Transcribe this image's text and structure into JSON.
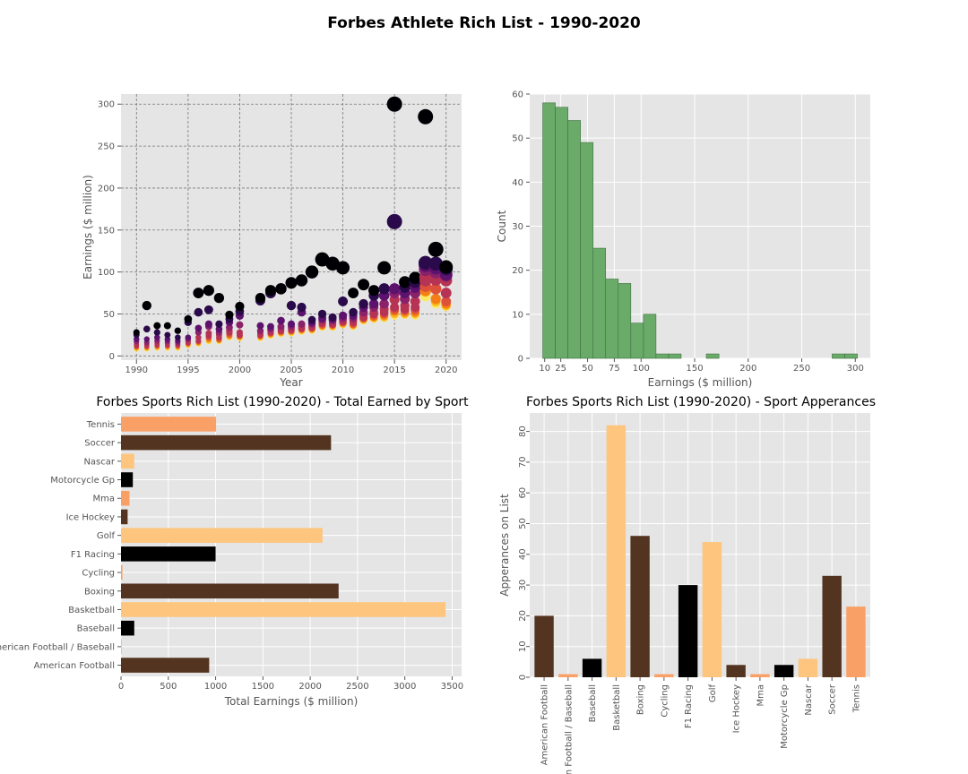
{
  "figure": {
    "title": "Forbes Athlete Rich List - 1990-2020"
  },
  "chart_data": [
    {
      "type": "scatter",
      "title": "",
      "xlabel": "Year",
      "ylabel": "Earnings ($ million)",
      "xlim": [
        1988.5,
        2021.5
      ],
      "ylim": [
        -5,
        312
      ],
      "xticks": [
        1990,
        1995,
        2000,
        2005,
        2010,
        2015,
        2020
      ],
      "yticks": [
        0,
        50,
        100,
        150,
        200,
        250,
        300
      ],
      "grid": "dashed",
      "colormap": [
        "#000004",
        "#2a0a4a",
        "#5d126e",
        "#8a226a",
        "#b73354",
        "#dd513a",
        "#f57d15",
        "#fbb61a",
        "#fbe968"
      ],
      "points_by_year": [
        {
          "year": 1990,
          "values": [
            28,
            25,
            20,
            17,
            14,
            12,
            11,
            10,
            9,
            8
          ]
        },
        {
          "year": 1991,
          "values": [
            60,
            32,
            20,
            16,
            14,
            12,
            11,
            10,
            9,
            8
          ]
        },
        {
          "year": 1992,
          "values": [
            36,
            28,
            22,
            18,
            15,
            13,
            12,
            11,
            10,
            9
          ]
        },
        {
          "year": 1993,
          "values": [
            36,
            25,
            20,
            17,
            15,
            13,
            12,
            11,
            10,
            9
          ]
        },
        {
          "year": 1994,
          "values": [
            30,
            22,
            18,
            16,
            14,
            13,
            12,
            11,
            10,
            9
          ]
        },
        {
          "year": 1995,
          "values": [
            44,
            40,
            22,
            20,
            18,
            16,
            15,
            14,
            13,
            12
          ]
        },
        {
          "year": 1996,
          "values": [
            75,
            52,
            33,
            28,
            22,
            18,
            17,
            16,
            15,
            14
          ]
        },
        {
          "year": 1997,
          "values": [
            78,
            55,
            38,
            35,
            27,
            24,
            22,
            20,
            18,
            17
          ]
        },
        {
          "year": 1998,
          "values": [
            69,
            38,
            32,
            28,
            25,
            22,
            20,
            19,
            18,
            17
          ]
        },
        {
          "year": 1999,
          "values": [
            49,
            44,
            40,
            34,
            30,
            28,
            26,
            24,
            23,
            22
          ]
        },
        {
          "year": 2000,
          "values": [
            59,
            53,
            48,
            37,
            28,
            25,
            24,
            23,
            22,
            21
          ]
        },
        {
          "year": 2002,
          "values": [
            69,
            66,
            36,
            30,
            27,
            25,
            24,
            23,
            22,
            21
          ]
        },
        {
          "year": 2003,
          "values": [
            78,
            75,
            35,
            32,
            30,
            28,
            27,
            26,
            25,
            24
          ]
        },
        {
          "year": 2004,
          "values": [
            80,
            80,
            42,
            35,
            32,
            30,
            29,
            28,
            27,
            26
          ]
        },
        {
          "year": 2005,
          "values": [
            87,
            60,
            38,
            35,
            33,
            31,
            30,
            29,
            28,
            27
          ]
        },
        {
          "year": 2006,
          "values": [
            90,
            58,
            52,
            38,
            35,
            33,
            32,
            31,
            30,
            29
          ]
        },
        {
          "year": 2007,
          "values": [
            100,
            43,
            40,
            38,
            36,
            34,
            33,
            32,
            31,
            30
          ]
        },
        {
          "year": 2008,
          "values": [
            115,
            50,
            45,
            43,
            41,
            39,
            37,
            36,
            35,
            34
          ]
        },
        {
          "year": 2009,
          "values": [
            110,
            46,
            44,
            42,
            40,
            38,
            37,
            36,
            35,
            34
          ]
        },
        {
          "year": 2010,
          "values": [
            105,
            65,
            48,
            45,
            43,
            41,
            40,
            39,
            38,
            37
          ]
        },
        {
          "year": 2011,
          "values": [
            75,
            52,
            48,
            45,
            42,
            40,
            38,
            37,
            36,
            35
          ]
        },
        {
          "year": 2012,
          "values": [
            85,
            62,
            58,
            52,
            48,
            46,
            45,
            44,
            43,
            42
          ]
        },
        {
          "year": 2013,
          "values": [
            78,
            72,
            62,
            58,
            52,
            50,
            48,
            46,
            45,
            44
          ]
        },
        {
          "year": 2014,
          "values": [
            105,
            80,
            72,
            62,
            56,
            52,
            50,
            48,
            46,
            45
          ]
        },
        {
          "year": 2015,
          "values": [
            300,
            160,
            80,
            75,
            67,
            58,
            55,
            53,
            50,
            48
          ]
        },
        {
          "year": 2016,
          "values": [
            88,
            82,
            75,
            68,
            60,
            56,
            54,
            52,
            50,
            49
          ]
        },
        {
          "year": 2017,
          "values": [
            93,
            88,
            82,
            75,
            65,
            58,
            55,
            52,
            50,
            48
          ]
        },
        {
          "year": 2018,
          "values": [
            285,
            111,
            108,
            103,
            94,
            90,
            83,
            78,
            77,
            71
          ]
        },
        {
          "year": 2019,
          "values": [
            127,
            110,
            105,
            100,
            94,
            91,
            80,
            68,
            65,
            62
          ]
        },
        {
          "year": 2020,
          "values": [
            106,
            104,
            97,
            96,
            90,
            75,
            65,
            62,
            60,
            59
          ]
        }
      ]
    },
    {
      "type": "bar",
      "subtype": "histogram",
      "title": "",
      "xlabel": "Earnings ($ million)",
      "ylabel": "Count",
      "xlim": [
        -4,
        314
      ],
      "ylim": [
        0,
        60
      ],
      "xticks": [
        10,
        25,
        50,
        75,
        100,
        150,
        200,
        250,
        300
      ],
      "yticks": [
        0,
        10,
        20,
        30,
        40,
        50,
        60
      ],
      "bin_edges": [
        8.2,
        19.9,
        31.7,
        43.4,
        55.2,
        66.9,
        78.7,
        90.4,
        102.2,
        113.9,
        125.7,
        137.4,
        149.2,
        160.9,
        172.7,
        184.4,
        196.2,
        207.9,
        219.7,
        231.4,
        243.2,
        254.9,
        266.7,
        278.4,
        290.2,
        301.9
      ],
      "counts": [
        58,
        57,
        54,
        49,
        25,
        18,
        17,
        8,
        10,
        1,
        1,
        0,
        0,
        1,
        0,
        0,
        0,
        0,
        0,
        0,
        0,
        0,
        0,
        1,
        1
      ],
      "color": "#6aab6a",
      "grid": "on"
    },
    {
      "type": "bar",
      "orientation": "horizontal",
      "title": "Forbes Sports Rich List (1990-2020) - Total Earned by Sport",
      "xlabel": "Total Earnings ($ million)",
      "ylabel": "",
      "xlim": [
        0,
        3600
      ],
      "xticks": [
        0,
        500,
        1000,
        1500,
        2000,
        2500,
        3000,
        3500
      ],
      "categories": [
        "American Football",
        "American Football / Baseball",
        "Baseball",
        "Basketball",
        "Boxing",
        "Cycling",
        "F1 Racing",
        "Golf",
        "Ice Hockey",
        "Mma",
        "Motorcycle Gp",
        "Nascar",
        "Soccer",
        "Tennis"
      ],
      "values": [
        932,
        5,
        140,
        3430,
        2300,
        15,
        1000,
        2130,
        70,
        90,
        125,
        140,
        2220,
        1005
      ],
      "colors": [
        "#533420",
        "#f9a066",
        "#000000",
        "#fdc57d",
        "#533420",
        "#f9a066",
        "#000000",
        "#fdc57d",
        "#533420",
        "#f9a066",
        "#000000",
        "#fdc57d",
        "#533420",
        "#f9a066"
      ],
      "grid": "on"
    },
    {
      "type": "bar",
      "title": "Forbes Sports Rich List (1990-2020) - Sport Apperances",
      "xlabel": "",
      "ylabel": "Apperances on List",
      "ylim": [
        0,
        86
      ],
      "yticks": [
        0,
        10,
        20,
        30,
        40,
        50,
        60,
        70,
        80
      ],
      "categories": [
        "American Football",
        "American Football / Baseball",
        "Baseball",
        "Basketball",
        "Boxing",
        "Cycling",
        "F1 Racing",
        "Golf",
        "Ice Hockey",
        "Mma",
        "Motorcycle Gp",
        "Nascar",
        "Soccer",
        "Tennis"
      ],
      "values": [
        20,
        1,
        6,
        82,
        46,
        1,
        30,
        44,
        4,
        1,
        4,
        6,
        33,
        23
      ],
      "colors": [
        "#533420",
        "#f9a066",
        "#000000",
        "#fdc57d",
        "#533420",
        "#f9a066",
        "#000000",
        "#fdc57d",
        "#533420",
        "#f9a066",
        "#000000",
        "#fdc57d",
        "#533420",
        "#f9a066"
      ],
      "grid": "on"
    }
  ]
}
